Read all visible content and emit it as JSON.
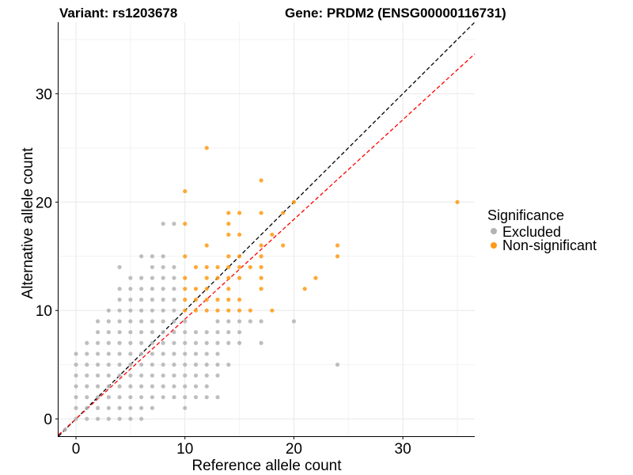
{
  "chart_data": {
    "type": "scatter",
    "title_left": "Variant: rs1203678",
    "title_right": "Gene: PRDM2 (ENSG00000116731)",
    "xlabel": "Reference allele count",
    "ylabel": "Alternative allele count",
    "xlim": [
      -1.6,
      36.6
    ],
    "ylim": [
      -1.6,
      36.6
    ],
    "xticks": [
      0,
      10,
      20,
      30
    ],
    "yticks": [
      0,
      10,
      20,
      30
    ],
    "grid": true,
    "legend": {
      "title": "Significance",
      "placement": "right",
      "entries": [
        {
          "label": "Excluded",
          "color": "#b3b3b3"
        },
        {
          "label": "Non-significant",
          "color": "#ff9a14"
        }
      ]
    },
    "reference_lines": [
      {
        "slope": 1.0,
        "intercept": 0,
        "color": "#000000",
        "style": "dashed"
      },
      {
        "slope": 0.92,
        "intercept": 0,
        "color": "#ff0000",
        "style": "dashed"
      }
    ],
    "series": [
      {
        "name": "Excluded",
        "color": "#b3b3b3",
        "points": [
          [
            -1,
            -1
          ],
          [
            0,
            0
          ],
          [
            0,
            1
          ],
          [
            0,
            2
          ],
          [
            0,
            3
          ],
          [
            0,
            4
          ],
          [
            0,
            5
          ],
          [
            0,
            6
          ],
          [
            1,
            0
          ],
          [
            1,
            1
          ],
          [
            1,
            2
          ],
          [
            1,
            3
          ],
          [
            1,
            4
          ],
          [
            1,
            5
          ],
          [
            1,
            6
          ],
          [
            1,
            7
          ],
          [
            2,
            0
          ],
          [
            2,
            1
          ],
          [
            2,
            2
          ],
          [
            2,
            3
          ],
          [
            2,
            4
          ],
          [
            2,
            5
          ],
          [
            2,
            6
          ],
          [
            2,
            7
          ],
          [
            2,
            8
          ],
          [
            2,
            9
          ],
          [
            3,
            0
          ],
          [
            3,
            1
          ],
          [
            3,
            2
          ],
          [
            3,
            3
          ],
          [
            3,
            4
          ],
          [
            3,
            5
          ],
          [
            3,
            6
          ],
          [
            3,
            7
          ],
          [
            3,
            8
          ],
          [
            3,
            9
          ],
          [
            3,
            10
          ],
          [
            4,
            0
          ],
          [
            4,
            1
          ],
          [
            4,
            2
          ],
          [
            4,
            3
          ],
          [
            4,
            4
          ],
          [
            4,
            5
          ],
          [
            4,
            6
          ],
          [
            4,
            7
          ],
          [
            4,
            8
          ],
          [
            4,
            9
          ],
          [
            4,
            10
          ],
          [
            4,
            11
          ],
          [
            4,
            12
          ],
          [
            4,
            14
          ],
          [
            5,
            0
          ],
          [
            5,
            1
          ],
          [
            5,
            2
          ],
          [
            5,
            3
          ],
          [
            5,
            4
          ],
          [
            5,
            5
          ],
          [
            5,
            6
          ],
          [
            5,
            7
          ],
          [
            5,
            8
          ],
          [
            5,
            9
          ],
          [
            5,
            10
          ],
          [
            5,
            11
          ],
          [
            5,
            12
          ],
          [
            5,
            13
          ],
          [
            6,
            0
          ],
          [
            6,
            1
          ],
          [
            6,
            2
          ],
          [
            6,
            3
          ],
          [
            6,
            4
          ],
          [
            6,
            5
          ],
          [
            6,
            6
          ],
          [
            6,
            7
          ],
          [
            6,
            8
          ],
          [
            6,
            9
          ],
          [
            6,
            10
          ],
          [
            6,
            11
          ],
          [
            6,
            12
          ],
          [
            6,
            13
          ],
          [
            6,
            15
          ],
          [
            7,
            1
          ],
          [
            7,
            2
          ],
          [
            7,
            3
          ],
          [
            7,
            4
          ],
          [
            7,
            5
          ],
          [
            7,
            6
          ],
          [
            7,
            7
          ],
          [
            7,
            8
          ],
          [
            7,
            9
          ],
          [
            7,
            10
          ],
          [
            7,
            11
          ],
          [
            7,
            12
          ],
          [
            7,
            13
          ],
          [
            7,
            14
          ],
          [
            7,
            15
          ],
          [
            8,
            2
          ],
          [
            8,
            3
          ],
          [
            8,
            4
          ],
          [
            8,
            5
          ],
          [
            8,
            6
          ],
          [
            8,
            7
          ],
          [
            8,
            8
          ],
          [
            8,
            9
          ],
          [
            8,
            10
          ],
          [
            8,
            11
          ],
          [
            8,
            12
          ],
          [
            8,
            13
          ],
          [
            8,
            14
          ],
          [
            8,
            15
          ],
          [
            8,
            18
          ],
          [
            9,
            2
          ],
          [
            9,
            3
          ],
          [
            9,
            4
          ],
          [
            9,
            5
          ],
          [
            9,
            6
          ],
          [
            9,
            7
          ],
          [
            9,
            8
          ],
          [
            9,
            9
          ],
          [
            9,
            10
          ],
          [
            9,
            11
          ],
          [
            9,
            12
          ],
          [
            9,
            13
          ],
          [
            9,
            14
          ],
          [
            9,
            18
          ],
          [
            10,
            1
          ],
          [
            10,
            2
          ],
          [
            10,
            3
          ],
          [
            10,
            4
          ],
          [
            10,
            5
          ],
          [
            10,
            6
          ],
          [
            10,
            7
          ],
          [
            10,
            8
          ],
          [
            10,
            9
          ],
          [
            11,
            2
          ],
          [
            11,
            3
          ],
          [
            11,
            4
          ],
          [
            11,
            5
          ],
          [
            11,
            6
          ],
          [
            11,
            7
          ],
          [
            11,
            8
          ],
          [
            12,
            2
          ],
          [
            12,
            3
          ],
          [
            12,
            4
          ],
          [
            12,
            5
          ],
          [
            12,
            6
          ],
          [
            12,
            7
          ],
          [
            12,
            8
          ],
          [
            13,
            2
          ],
          [
            13,
            4
          ],
          [
            13,
            5
          ],
          [
            13,
            6
          ],
          [
            13,
            7
          ],
          [
            13,
            8
          ],
          [
            13,
            9
          ],
          [
            14,
            5
          ],
          [
            14,
            7
          ],
          [
            14,
            8
          ],
          [
            14,
            9
          ],
          [
            15,
            7
          ],
          [
            15,
            8
          ],
          [
            15,
            9
          ],
          [
            16,
            9
          ],
          [
            17,
            7
          ],
          [
            17,
            9
          ],
          [
            20,
            9
          ],
          [
            24,
            5
          ]
        ]
      },
      {
        "name": "Non-significant",
        "color": "#ff9a14",
        "points": [
          [
            10,
            10
          ],
          [
            10,
            11
          ],
          [
            10,
            12
          ],
          [
            10,
            13
          ],
          [
            10,
            15
          ],
          [
            10,
            18
          ],
          [
            10,
            21
          ],
          [
            11,
            10
          ],
          [
            11,
            11
          ],
          [
            11,
            12
          ],
          [
            11,
            14
          ],
          [
            12,
            10
          ],
          [
            12,
            11
          ],
          [
            12,
            12
          ],
          [
            12,
            13
          ],
          [
            12,
            14
          ],
          [
            12,
            16
          ],
          [
            12,
            25
          ],
          [
            13,
            10
          ],
          [
            13,
            11
          ],
          [
            13,
            13
          ],
          [
            13,
            14
          ],
          [
            14,
            10
          ],
          [
            14,
            11
          ],
          [
            14,
            12
          ],
          [
            14,
            13
          ],
          [
            14,
            14
          ],
          [
            14,
            15
          ],
          [
            14,
            17
          ],
          [
            14,
            18
          ],
          [
            14,
            19
          ],
          [
            15,
            10
          ],
          [
            15,
            11
          ],
          [
            15,
            13
          ],
          [
            15,
            14
          ],
          [
            15,
            15
          ],
          [
            15,
            17
          ],
          [
            15,
            19
          ],
          [
            16,
            10
          ],
          [
            16,
            14
          ],
          [
            17,
            12
          ],
          [
            17,
            13
          ],
          [
            17,
            14
          ],
          [
            17,
            15
          ],
          [
            17,
            16
          ],
          [
            17,
            19
          ],
          [
            17,
            22
          ],
          [
            18,
            10
          ],
          [
            18,
            17
          ],
          [
            19,
            16
          ],
          [
            19,
            19
          ],
          [
            20,
            20
          ],
          [
            21,
            12
          ],
          [
            22,
            13
          ],
          [
            24,
            15
          ],
          [
            24,
            16
          ],
          [
            35,
            20
          ]
        ]
      }
    ]
  }
}
